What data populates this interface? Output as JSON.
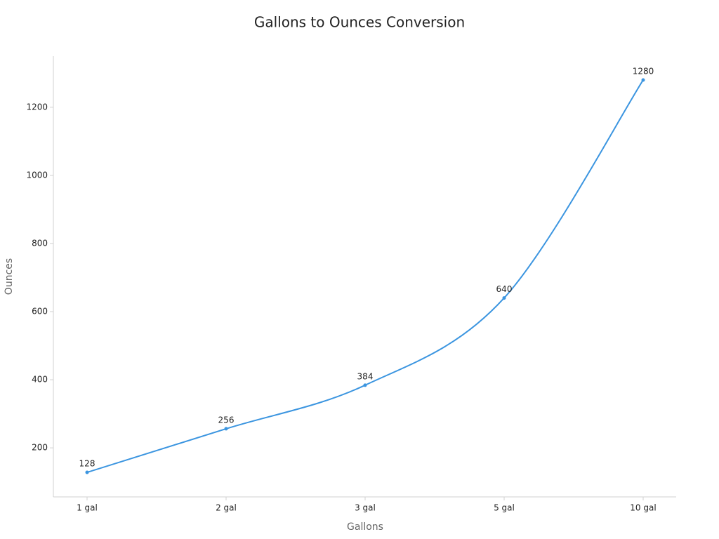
{
  "chart_data": {
    "type": "line",
    "title": "Gallons to Ounces Conversion",
    "x_label": "Gallons",
    "y_label": "Ounces",
    "categories": [
      "1 gal",
      "2 gal",
      "3 gal",
      "5 gal",
      "10 gal"
    ],
    "series": [
      {
        "name": "Ounces",
        "color": "#3b95e0",
        "values": [
          128,
          256,
          384,
          640,
          1280
        ]
      }
    ],
    "ylim": [
      56,
      1350
    ],
    "yticks": [
      200,
      400,
      600,
      800,
      1000,
      1200
    ],
    "grid": false
  }
}
